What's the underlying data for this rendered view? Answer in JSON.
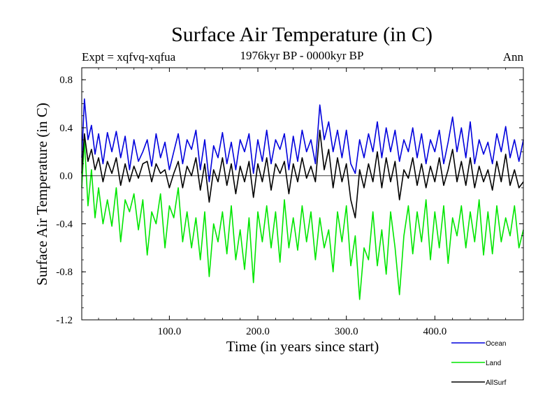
{
  "chart_data": {
    "type": "line",
    "title": "Surface Air Temperature (in C)",
    "subtitle_left": "Expt = xqfvq-xqfua",
    "subtitle_center": "1976kyr BP - 0000kyr BP",
    "subtitle_right": "Ann",
    "xlabel": "Time (in years since start)",
    "ylabel": "Surface Air Temperature (in C)",
    "xlim": [
      1,
      500
    ],
    "ylim": [
      -1.2,
      0.9
    ],
    "xticks": [
      {
        "value": 100,
        "label": "100.0"
      },
      {
        "value": 200,
        "label": "200.0"
      },
      {
        "value": 300,
        "label": "300.0"
      },
      {
        "value": 400,
        "label": "400.0"
      }
    ],
    "yticks": [
      {
        "value": 0.8,
        "label": "0.8"
      },
      {
        "value": 0.4,
        "label": "0.4"
      },
      {
        "value": 0.0,
        "label": "0.0"
      },
      {
        "value": -0.4,
        "label": "-0.4"
      },
      {
        "value": -0.8,
        "label": "-0.8"
      },
      {
        "value": -1.2,
        "label": "-1.2"
      }
    ],
    "x": [
      1,
      4,
      8,
      12,
      16,
      20,
      25,
      30,
      35,
      40,
      45,
      50,
      55,
      60,
      65,
      70,
      75,
      80,
      85,
      90,
      95,
      100,
      105,
      110,
      115,
      120,
      125,
      130,
      135,
      140,
      145,
      150,
      155,
      160,
      165,
      170,
      175,
      180,
      185,
      190,
      195,
      200,
      205,
      210,
      215,
      220,
      225,
      230,
      235,
      240,
      245,
      250,
      255,
      260,
      265,
      270,
      275,
      280,
      285,
      290,
      295,
      300,
      305,
      310,
      315,
      320,
      325,
      330,
      335,
      340,
      345,
      350,
      355,
      360,
      365,
      370,
      375,
      380,
      385,
      390,
      395,
      400,
      405,
      410,
      415,
      420,
      425,
      430,
      435,
      440,
      445,
      450,
      455,
      460,
      465,
      470,
      475,
      480,
      485,
      490,
      495,
      500
    ],
    "series": [
      {
        "name": "Ocean",
        "color": "#0000dd",
        "values": [
          0.15,
          0.64,
          0.3,
          0.42,
          0.18,
          0.35,
          0.1,
          0.36,
          0.2,
          0.37,
          0.15,
          0.33,
          0.05,
          0.3,
          0.12,
          0.2,
          0.3,
          0.08,
          0.35,
          0.15,
          0.28,
          0.05,
          0.2,
          0.35,
          0.1,
          0.3,
          0.22,
          0.38,
          0.05,
          0.3,
          -0.05,
          0.25,
          0.15,
          0.36,
          0.1,
          0.28,
          0.05,
          0.3,
          0.2,
          0.35,
          0.02,
          0.3,
          0.12,
          0.38,
          0.1,
          0.3,
          0.22,
          0.35,
          0.05,
          0.33,
          0.12,
          0.38,
          0.2,
          0.3,
          0.1,
          0.59,
          0.3,
          0.45,
          0.2,
          0.38,
          0.15,
          0.38,
          0.1,
          0.02,
          0.3,
          0.15,
          0.35,
          0.2,
          0.45,
          0.15,
          0.4,
          0.2,
          0.38,
          0.12,
          0.3,
          0.2,
          0.4,
          0.15,
          0.35,
          0.1,
          0.3,
          0.2,
          0.38,
          0.1,
          0.28,
          0.49,
          0.2,
          0.4,
          0.15,
          0.45,
          0.1,
          0.3,
          0.18,
          0.28,
          0.1,
          0.35,
          0.2,
          0.41,
          0.15,
          0.3,
          0.12,
          0.3
        ]
      },
      {
        "name": "Land",
        "color": "#00e600",
        "values": [
          -0.1,
          0.3,
          -0.25,
          0.05,
          -0.35,
          -0.1,
          -0.4,
          -0.2,
          -0.42,
          -0.1,
          -0.55,
          -0.2,
          -0.3,
          -0.15,
          -0.45,
          -0.2,
          -0.66,
          -0.3,
          -0.4,
          -0.15,
          -0.6,
          -0.25,
          -0.35,
          -0.1,
          -0.55,
          -0.3,
          -0.6,
          -0.35,
          -0.7,
          -0.3,
          -0.84,
          -0.4,
          -0.55,
          -0.3,
          -0.65,
          -0.25,
          -0.7,
          -0.45,
          -0.78,
          -0.35,
          -0.89,
          -0.3,
          -0.55,
          -0.25,
          -0.6,
          -0.3,
          -0.72,
          -0.2,
          -0.6,
          -0.35,
          -0.62,
          -0.25,
          -0.55,
          -0.3,
          -0.7,
          -0.35,
          -0.6,
          -0.45,
          -0.8,
          -0.3,
          -0.55,
          -0.25,
          -0.75,
          -0.5,
          -1.03,
          -0.6,
          -0.7,
          -0.3,
          -0.75,
          -0.45,
          -0.82,
          -0.3,
          -0.6,
          -0.99,
          -0.5,
          -0.25,
          -0.65,
          -0.3,
          -0.55,
          -0.2,
          -0.7,
          -0.3,
          -0.6,
          -0.25,
          -0.73,
          -0.35,
          -0.5,
          -0.25,
          -0.6,
          -0.3,
          -0.55,
          -0.2,
          -0.66,
          -0.3,
          -0.65,
          -0.25,
          -0.55,
          -0.35,
          -0.5,
          -0.25,
          -0.6,
          -0.45
        ]
      },
      {
        "name": "AllSurf",
        "color": "#000000",
        "values": [
          0.02,
          0.35,
          0.12,
          0.22,
          0.05,
          0.15,
          -0.05,
          0.12,
          0.02,
          0.15,
          -0.08,
          0.1,
          -0.05,
          0.08,
          -0.02,
          0.1,
          0.12,
          -0.05,
          0.1,
          0.02,
          0.05,
          -0.1,
          0.02,
          0.12,
          -0.1,
          0.08,
          0.0,
          0.15,
          -0.12,
          0.1,
          -0.22,
          0.05,
          -0.05,
          0.15,
          -0.08,
          0.1,
          -0.15,
          0.08,
          -0.05,
          0.12,
          -0.18,
          0.1,
          -0.05,
          0.15,
          -0.12,
          0.1,
          0.02,
          0.12,
          -0.15,
          0.1,
          -0.05,
          0.15,
          -0.02,
          0.08,
          -0.05,
          0.38,
          0.05,
          0.22,
          -0.1,
          0.15,
          -0.05,
          0.1,
          -0.2,
          -0.35,
          0.05,
          -0.1,
          0.1,
          -0.05,
          0.2,
          -0.1,
          0.15,
          -0.05,
          0.12,
          -0.2,
          0.05,
          -0.02,
          0.15,
          -0.08,
          0.1,
          -0.1,
          0.08,
          -0.05,
          0.15,
          -0.08,
          0.05,
          0.22,
          -0.05,
          0.12,
          -0.08,
          0.15,
          -0.1,
          0.08,
          -0.05,
          0.05,
          -0.12,
          0.12,
          -0.05,
          0.18,
          -0.08,
          0.05,
          -0.1,
          -0.05
        ]
      }
    ],
    "legend": {
      "placement": "bottom-right",
      "entries": [
        "Ocean",
        "Land",
        "AllSurf"
      ]
    },
    "zero_line": true,
    "grid": false
  }
}
